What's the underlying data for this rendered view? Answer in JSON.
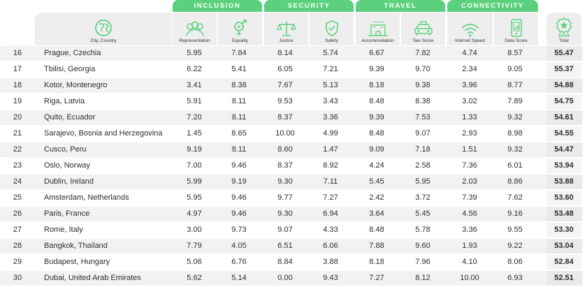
{
  "categories": [
    {
      "label": "INCLUSION"
    },
    {
      "label": "SECURITY"
    },
    {
      "label": "TRAVEL"
    },
    {
      "label": "CONNECTIVITY"
    }
  ],
  "columns": {
    "city": "City, Country",
    "representation": "Representation",
    "equality": "Equality",
    "justice": "Justice",
    "safety": "Safety",
    "accommodation": "Accommodation",
    "taxi": "Taxi Score",
    "internet": "Internet Speed",
    "data": "Data Score",
    "total": "Total"
  },
  "colors": {
    "accent": "#5bd17d",
    "header_bg": "#eeeeee",
    "stripe": "#f2f2f2"
  },
  "rows": [
    {
      "rank": "16",
      "city": "Prague, Czechia",
      "representation": "5.95",
      "equality": "7.84",
      "justice": "8.14",
      "safety": "5.74",
      "accommodation": "6.67",
      "taxi": "7.82",
      "internet": "4.74",
      "data": "8.57",
      "total": "55.47"
    },
    {
      "rank": "17",
      "city": "Tbilisi, Georgia",
      "representation": "6.22",
      "equality": "5.41",
      "justice": "6.05",
      "safety": "7.21",
      "accommodation": "9.39",
      "taxi": "9.70",
      "internet": "2.34",
      "data": "9.05",
      "total": "55.37"
    },
    {
      "rank": "18",
      "city": "Kotor, Montenegro",
      "representation": "3.41",
      "equality": "8.38",
      "justice": "7.67",
      "safety": "5.13",
      "accommodation": "8.18",
      "taxi": "9.38",
      "internet": "3.96",
      "data": "8.77",
      "total": "54.88"
    },
    {
      "rank": "19",
      "city": "Riga, Latvia",
      "representation": "5.91",
      "equality": "8.11",
      "justice": "9.53",
      "safety": "3.43",
      "accommodation": "8.48",
      "taxi": "8.38",
      "internet": "3.02",
      "data": "7.89",
      "total": "54.75"
    },
    {
      "rank": "20",
      "city": "Quito, Ecuador",
      "representation": "7.20",
      "equality": "8.11",
      "justice": "8.37",
      "safety": "3.36",
      "accommodation": "9.39",
      "taxi": "7.53",
      "internet": "1.33",
      "data": "9.32",
      "total": "54.61"
    },
    {
      "rank": "21",
      "city": "Sarajevo, Bosnia and Herzegovina",
      "representation": "1.45",
      "equality": "8.65",
      "justice": "10.00",
      "safety": "4.99",
      "accommodation": "8.48",
      "taxi": "9.07",
      "internet": "2.93",
      "data": "8.98",
      "total": "54.55"
    },
    {
      "rank": "22",
      "city": "Cusco, Peru",
      "representation": "9.19",
      "equality": "8.11",
      "justice": "8.60",
      "safety": "1.47",
      "accommodation": "9.09",
      "taxi": "7.18",
      "internet": "1.51",
      "data": "9.32",
      "total": "54.47"
    },
    {
      "rank": "23",
      "city": "Oslo, Norway",
      "representation": "7.00",
      "equality": "9.46",
      "justice": "8.37",
      "safety": "8.92",
      "accommodation": "4.24",
      "taxi": "2.58",
      "internet": "7.36",
      "data": "6.01",
      "total": "53.94"
    },
    {
      "rank": "24",
      "city": "Dublin, Ireland",
      "representation": "5.99",
      "equality": "9.19",
      "justice": "9.30",
      "safety": "7.11",
      "accommodation": "5.45",
      "taxi": "5.95",
      "internet": "2.03",
      "data": "8.86",
      "total": "53.88"
    },
    {
      "rank": "25",
      "city": "Amsterdam, Netherlands",
      "representation": "5.95",
      "equality": "9.46",
      "justice": "9.77",
      "safety": "7.27",
      "accommodation": "2.42",
      "taxi": "3.72",
      "internet": "7.39",
      "data": "7.62",
      "total": "53.60"
    },
    {
      "rank": "26",
      "city": "Paris, France",
      "representation": "4.97",
      "equality": "9.46",
      "justice": "9.30",
      "safety": "6.94",
      "accommodation": "3.64",
      "taxi": "5.45",
      "internet": "4.56",
      "data": "9.16",
      "total": "53.48"
    },
    {
      "rank": "27",
      "city": "Rome, Italy",
      "representation": "3.00",
      "equality": "9.73",
      "justice": "9.07",
      "safety": "4.33",
      "accommodation": "8.48",
      "taxi": "5.78",
      "internet": "3.36",
      "data": "9.55",
      "total": "53.30"
    },
    {
      "rank": "28",
      "city": "Bangkok, Thailand",
      "representation": "7.79",
      "equality": "4.05",
      "justice": "6.51",
      "safety": "6.06",
      "accommodation": "7.88",
      "taxi": "9.60",
      "internet": "1.93",
      "data": "9.22",
      "total": "53.04"
    },
    {
      "rank": "29",
      "city": "Budapest, Hungary",
      "representation": "5.06",
      "equality": "6.76",
      "justice": "8.84",
      "safety": "3.88",
      "accommodation": "8.18",
      "taxi": "7.96",
      "internet": "4.10",
      "data": "8.06",
      "total": "52.84"
    },
    {
      "rank": "30",
      "city": "Dubai, United Arab Emirates",
      "representation": "5.62",
      "equality": "5.14",
      "justice": "0.00",
      "safety": "9.43",
      "accommodation": "7.27",
      "taxi": "8.12",
      "internet": "10.00",
      "data": "6.93",
      "total": "52.51"
    }
  ]
}
